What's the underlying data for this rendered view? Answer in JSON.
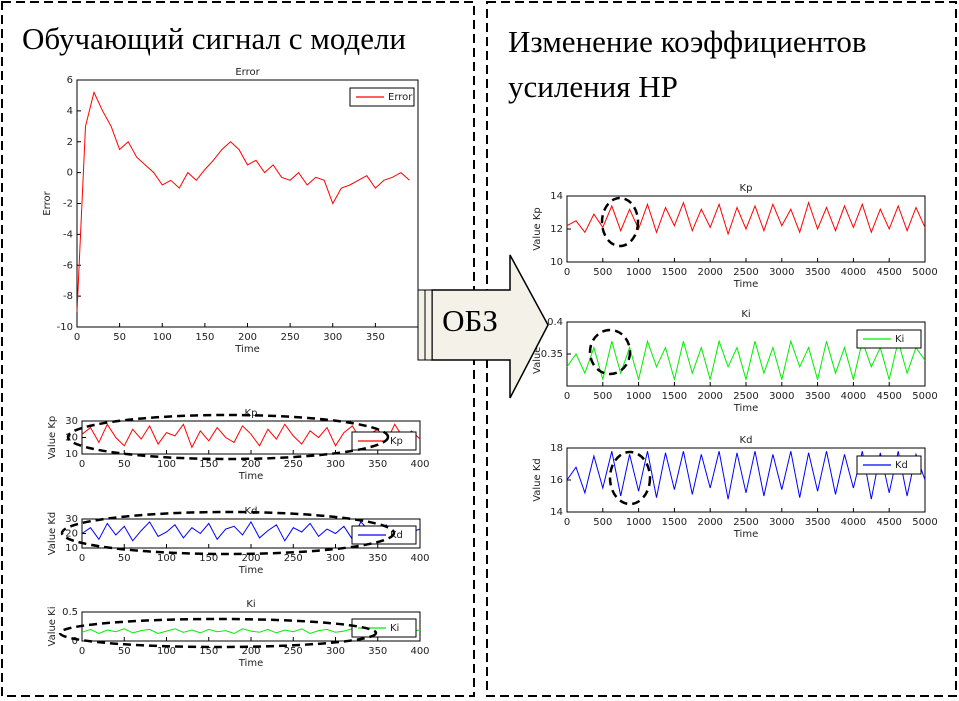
{
  "panels": {
    "left_title": "Обучающий сигнал с модели",
    "right_title_1": "Изменение коэффициентов",
    "right_title_2": "усиления НР",
    "arrow_label": "ОБЗ"
  },
  "chart_data": [
    {
      "type": "line",
      "title": "Error",
      "xlabel": "Time",
      "ylabel": "Error",
      "x": [
        0,
        10,
        20,
        30,
        40,
        50,
        60,
        70,
        80,
        90,
        100,
        110,
        120,
        130,
        140,
        150,
        160,
        170,
        180,
        190,
        200,
        210,
        220,
        230,
        240,
        250,
        260,
        270,
        280,
        290,
        300,
        310,
        320,
        330,
        340,
        350,
        360,
        370,
        380,
        390
      ],
      "series": [
        {
          "name": "Error",
          "color": "#ff0000",
          "values": [
            -9,
            3,
            5.2,
            4,
            3,
            1.5,
            2,
            1,
            0.5,
            0,
            -0.8,
            -0.5,
            -1,
            0,
            -0.5,
            0.2,
            0.8,
            1.5,
            2,
            1.5,
            0.5,
            0.8,
            0,
            0.5,
            -0.3,
            -0.5,
            0,
            -0.8,
            -0.3,
            -0.5,
            -2,
            -1,
            -0.8,
            -0.5,
            -0.2,
            -1,
            -0.5,
            -0.3,
            0,
            -0.5
          ]
        }
      ],
      "xlim": [
        0,
        400
      ],
      "xticks": [
        0,
        50,
        100,
        150,
        200,
        250,
        300,
        350
      ],
      "ylim": [
        -10,
        6
      ],
      "yticks": [
        -10,
        -8,
        -6,
        -4,
        -2,
        0,
        2,
        4,
        6
      ],
      "legend": "upper right"
    },
    {
      "type": "line",
      "title": "Kp",
      "xlabel": "Time",
      "ylabel": "Value Kp",
      "x": [
        0,
        10,
        20,
        30,
        40,
        50,
        60,
        70,
        80,
        90,
        100,
        110,
        120,
        130,
        140,
        150,
        160,
        170,
        180,
        190,
        200,
        210,
        220,
        230,
        240,
        250,
        260,
        270,
        280,
        290,
        300,
        310,
        320,
        330,
        340,
        350,
        360,
        370,
        380,
        390,
        400
      ],
      "series": [
        {
          "name": "Kp",
          "color": "#ff0000",
          "values": [
            22,
            26,
            17,
            28,
            20,
            15,
            25,
            19,
            27,
            16,
            23,
            21,
            28,
            14,
            24,
            18,
            26,
            20,
            17,
            27,
            22,
            15,
            25,
            19,
            28,
            21,
            16,
            24,
            20,
            26,
            15,
            23,
            27,
            18,
            22,
            25,
            17,
            28,
            20,
            24,
            19
          ]
        }
      ],
      "xlim": [
        0,
        400
      ],
      "xticks": [
        0,
        50,
        100,
        150,
        200,
        250,
        300,
        350,
        400
      ],
      "ylim": [
        10,
        30
      ],
      "yticks": [
        10,
        20,
        30
      ],
      "legend": "lower right"
    },
    {
      "type": "line",
      "title": "Kd",
      "xlabel": "Time",
      "ylabel": "Value Kd",
      "x": [
        0,
        10,
        20,
        30,
        40,
        50,
        60,
        70,
        80,
        90,
        100,
        110,
        120,
        130,
        140,
        150,
        160,
        170,
        180,
        190,
        200,
        210,
        220,
        230,
        240,
        250,
        260,
        270,
        280,
        290,
        300,
        310,
        320,
        330,
        340,
        350,
        360,
        370,
        380,
        390,
        400
      ],
      "series": [
        {
          "name": "Kd",
          "color": "#0000ff",
          "values": [
            20,
            24,
            16,
            27,
            19,
            25,
            15,
            22,
            28,
            18,
            21,
            26,
            17,
            24,
            20,
            27,
            16,
            23,
            25,
            19,
            28,
            17,
            22,
            26,
            15,
            24,
            21,
            27,
            18,
            23,
            20,
            25,
            16,
            28,
            22,
            19,
            26,
            17,
            24,
            21,
            23
          ]
        }
      ],
      "xlim": [
        0,
        400
      ],
      "xticks": [
        0,
        50,
        100,
        150,
        200,
        250,
        300,
        350,
        400
      ],
      "ylim": [
        10,
        30
      ],
      "yticks": [
        10,
        20,
        30
      ],
      "legend": "lower right"
    },
    {
      "type": "line",
      "title": "Ki",
      "xlabel": "Time",
      "ylabel": "Value Ki",
      "x": [
        0,
        10,
        20,
        30,
        40,
        50,
        60,
        70,
        80,
        90,
        100,
        110,
        120,
        130,
        140,
        150,
        160,
        170,
        180,
        190,
        200,
        210,
        220,
        230,
        240,
        250,
        260,
        270,
        280,
        290,
        300,
        310,
        320,
        330,
        340,
        350,
        360,
        370,
        380,
        390,
        400
      ],
      "series": [
        {
          "name": "Ki",
          "color": "#00ee00",
          "values": [
            0.15,
            0.2,
            0.13,
            0.19,
            0.16,
            0.21,
            0.14,
            0.18,
            0.2,
            0.13,
            0.17,
            0.21,
            0.15,
            0.19,
            0.14,
            0.2,
            0.16,
            0.18,
            0.13,
            0.21,
            0.17,
            0.15,
            0.2,
            0.14,
            0.19,
            0.16,
            0.21,
            0.13,
            0.18,
            0.2,
            0.15,
            0.17,
            0.21,
            0.14,
            0.19,
            0.16,
            0.2,
            0.13,
            0.18,
            0.17,
            0.19
          ]
        }
      ],
      "xlim": [
        0,
        400
      ],
      "xticks": [
        0,
        50,
        100,
        150,
        200,
        250,
        300,
        350,
        400
      ],
      "ylim": [
        0,
        0.5
      ],
      "yticks": [
        0,
        0.5
      ],
      "legend": "lower right"
    },
    {
      "type": "line",
      "title": "Kp",
      "xlabel": "Time",
      "ylabel": "Value Kp",
      "x": [
        0,
        125,
        250,
        375,
        500,
        625,
        750,
        875,
        1000,
        1125,
        1250,
        1375,
        1500,
        1625,
        1750,
        1875,
        2000,
        2125,
        2250,
        2375,
        2500,
        2625,
        2750,
        2875,
        3000,
        3125,
        3250,
        3375,
        3500,
        3625,
        3750,
        3875,
        4000,
        4125,
        4250,
        4375,
        4500,
        4625,
        4750,
        4875,
        5000
      ],
      "series": [
        {
          "color": "#ff0000",
          "values": [
            12.2,
            12.5,
            11.8,
            12.9,
            12.1,
            13.4,
            11.9,
            13.2,
            12.0,
            13.5,
            11.8,
            13.3,
            12.2,
            13.6,
            11.9,
            13.2,
            12.1,
            13.5,
            11.7,
            13.3,
            12.0,
            13.4,
            11.9,
            13.5,
            12.2,
            13.2,
            11.8,
            13.6,
            12.0,
            13.3,
            11.9,
            13.4,
            12.1,
            13.5,
            11.8,
            13.2,
            12.0,
            13.4,
            11.9,
            13.3,
            12.1
          ]
        }
      ],
      "xlim": [
        0,
        5000
      ],
      "xticks": [
        0,
        500,
        1000,
        1500,
        2000,
        2500,
        3000,
        3500,
        4000,
        4500,
        5000
      ],
      "ylim": [
        10,
        14
      ],
      "yticks": [
        10,
        12,
        14
      ]
    },
    {
      "type": "line",
      "title": "Ki",
      "xlabel": "Time",
      "ylabel": "Value Ki",
      "x": [
        0,
        125,
        250,
        375,
        500,
        625,
        750,
        875,
        1000,
        1125,
        1250,
        1375,
        1500,
        1625,
        1750,
        1875,
        2000,
        2125,
        2250,
        2375,
        2500,
        2625,
        2750,
        2875,
        3000,
        3125,
        3250,
        3375,
        3500,
        3625,
        3750,
        3875,
        4000,
        4125,
        4250,
        4375,
        4500,
        4625,
        4750,
        4875,
        5000
      ],
      "series": [
        {
          "name": "Ki",
          "color": "#00ee00",
          "values": [
            0.33,
            0.35,
            0.32,
            0.36,
            0.31,
            0.37,
            0.32,
            0.36,
            0.31,
            0.37,
            0.33,
            0.36,
            0.31,
            0.37,
            0.32,
            0.36,
            0.31,
            0.37,
            0.33,
            0.36,
            0.31,
            0.37,
            0.32,
            0.36,
            0.31,
            0.37,
            0.33,
            0.36,
            0.31,
            0.37,
            0.32,
            0.36,
            0.31,
            0.37,
            0.33,
            0.36,
            0.31,
            0.37,
            0.32,
            0.36,
            0.34
          ]
        }
      ],
      "xlim": [
        0,
        5000
      ],
      "xticks": [
        0,
        500,
        1000,
        1500,
        2000,
        2500,
        3000,
        3500,
        4000,
        4500,
        5000
      ],
      "ylim": [
        0.3,
        0.4
      ],
      "yticks": [
        0.35,
        0.4
      ],
      "legend": "upper right"
    },
    {
      "type": "line",
      "title": "Kd",
      "xlabel": "Time",
      "ylabel": "Value Kd",
      "x": [
        0,
        125,
        250,
        375,
        500,
        625,
        750,
        875,
        1000,
        1125,
        1250,
        1375,
        1500,
        1625,
        1750,
        1875,
        2000,
        2125,
        2250,
        2375,
        2500,
        2625,
        2750,
        2875,
        3000,
        3125,
        3250,
        3375,
        3500,
        3625,
        3750,
        3875,
        4000,
        4125,
        4250,
        4375,
        4500,
        4625,
        4750,
        4875,
        5000
      ],
      "series": [
        {
          "name": "Kd",
          "color": "#0000ff",
          "values": [
            16,
            16.8,
            15.2,
            17.5,
            15.5,
            17.8,
            15.0,
            17.6,
            15.3,
            17.8,
            14.9,
            17.7,
            15.4,
            17.8,
            15.1,
            17.6,
            15.5,
            17.8,
            14.8,
            17.7,
            15.2,
            17.8,
            15.0,
            17.6,
            15.4,
            17.8,
            14.9,
            17.7,
            15.3,
            17.8,
            15.1,
            17.6,
            15.5,
            17.8,
            14.8,
            17.7,
            15.2,
            17.8,
            15.0,
            17.6,
            16.0
          ]
        }
      ],
      "xlim": [
        0,
        5000
      ],
      "xticks": [
        0,
        500,
        1000,
        1500,
        2000,
        2500,
        3000,
        3500,
        4000,
        4500,
        5000
      ],
      "ylim": [
        14,
        18
      ],
      "yticks": [
        14,
        16,
        18
      ],
      "legend": "upper right"
    }
  ]
}
